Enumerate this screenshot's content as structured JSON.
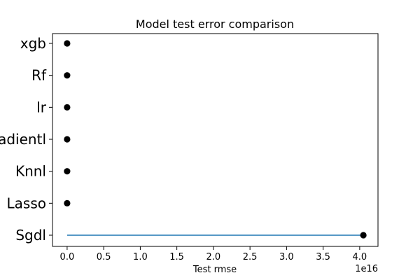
{
  "chart_data": {
    "type": "scatter",
    "title": "Model test error comparison",
    "xlabel": "Test rmse",
    "ylabel": "",
    "x_offset_label": "1e16",
    "x_scale_factor": 1e+16,
    "xlim": [
      -0.2,
      4.25
    ],
    "xticks": [
      0.0,
      0.5,
      1.0,
      1.5,
      2.0,
      2.5,
      3.0,
      3.5,
      4.0
    ],
    "xtick_labels": [
      "0.0",
      "0.5",
      "1.0",
      "1.5",
      "2.0",
      "2.5",
      "3.0",
      "3.5",
      "4.0"
    ],
    "categories": [
      "xgb",
      "Rf",
      "lr",
      "Gradientl",
      "Knnl",
      "Lasso",
      "Sgdl"
    ],
    "category_labels": [
      "xgb",
      "Rf",
      "lr",
      "adientl",
      "Knnl",
      "Lasso",
      "Sgdl"
    ],
    "values": [
      0.0,
      0.0,
      0.0,
      0.0,
      0.0,
      0.0,
      4.05
    ],
    "stem_start": 0.0,
    "stem_category": "Sgdl",
    "grid": false,
    "marker_color": "#000000",
    "stem_color": "#1f77b4"
  }
}
